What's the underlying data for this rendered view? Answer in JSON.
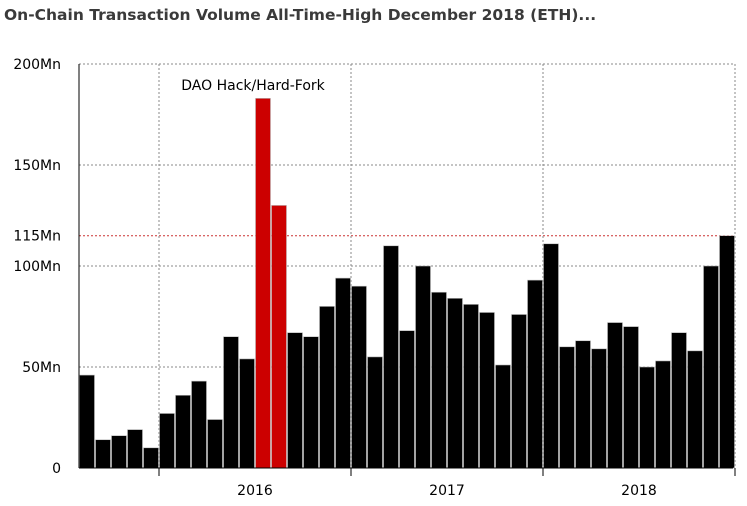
{
  "title": "On-Chain Transaction Volume All-Time-High December 2018 (ETH)...",
  "chart_data": {
    "type": "bar",
    "ylim": [
      0,
      200
    ],
    "yticks": [
      {
        "value": 0,
        "label": "0"
      },
      {
        "value": 50,
        "label": "50Mn"
      },
      {
        "value": 100,
        "label": "100Mn"
      },
      {
        "value": 115,
        "label": "115Mn",
        "highlight": true
      },
      {
        "value": 150,
        "label": "150Mn"
      },
      {
        "value": 200,
        "label": "200Mn"
      }
    ],
    "xticks": [
      "2016",
      "2017",
      "2018"
    ],
    "grid": true,
    "annotation": "DAO Hack/Hard-Fork",
    "colors": {
      "bar": "#000000",
      "highlight": "#cc0000",
      "reference_line": "#cc3333",
      "grid": "#888888"
    },
    "categories": [
      "2015-08",
      "2015-09",
      "2015-10",
      "2015-11",
      "2015-12",
      "2016-01",
      "2016-02",
      "2016-03",
      "2016-04",
      "2016-05",
      "2016-06",
      "2016-07",
      "2016-08",
      "2016-09",
      "2016-10",
      "2016-11",
      "2016-12",
      "2017-01",
      "2017-02",
      "2017-03",
      "2017-04",
      "2017-05",
      "2017-06",
      "2017-07",
      "2017-08",
      "2017-09",
      "2017-10",
      "2017-11",
      "2017-12",
      "2018-01",
      "2018-02",
      "2018-03",
      "2018-04",
      "2018-05",
      "2018-06",
      "2018-07",
      "2018-08",
      "2018-09",
      "2018-10",
      "2018-11",
      "2018-12"
    ],
    "values": [
      46,
      14,
      16,
      19,
      10,
      27,
      36,
      43,
      24,
      65,
      54,
      183,
      130,
      67,
      65,
      80,
      94,
      90,
      55,
      110,
      68,
      100,
      87,
      84,
      81,
      77,
      51,
      76,
      93,
      111,
      60,
      63,
      59,
      72,
      70,
      50,
      53,
      67,
      58,
      100,
      115
    ],
    "highlighted": [
      "2016-07",
      "2016-08"
    ]
  }
}
